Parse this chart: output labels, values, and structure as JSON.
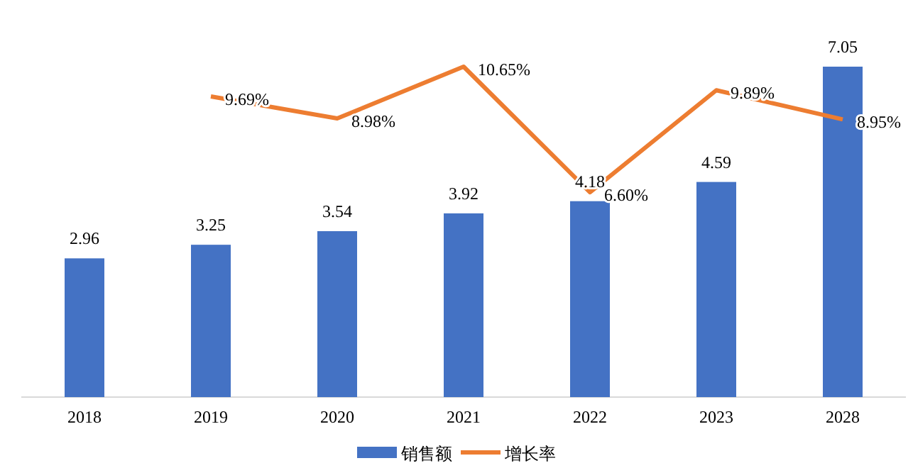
{
  "chart_data": {
    "type": "bar",
    "categories": [
      "2018",
      "2019",
      "2020",
      "2021",
      "2022",
      "2023",
      "2028"
    ],
    "series": [
      {
        "name": "销售额",
        "color": "#4472c4",
        "values": [
          2.96,
          3.25,
          3.54,
          3.92,
          4.18,
          4.59,
          7.05
        ],
        "value_labels": [
          "2.96",
          "3.25",
          "3.54",
          "3.92",
          "4.18",
          "4.59",
          "7.05"
        ]
      },
      {
        "name": "增长率",
        "type": "line",
        "axis": "y2",
        "color": "#ed7d31",
        "values": [
          null,
          9.69,
          8.98,
          10.65,
          6.6,
          9.89,
          8.95
        ],
        "value_labels": [
          null,
          "9.69%",
          "8.98%",
          "10.65%",
          "6.60%",
          "9.89%",
          "8.95%"
        ]
      }
    ],
    "tick_labels": "x",
    "legend": "bottom"
  }
}
